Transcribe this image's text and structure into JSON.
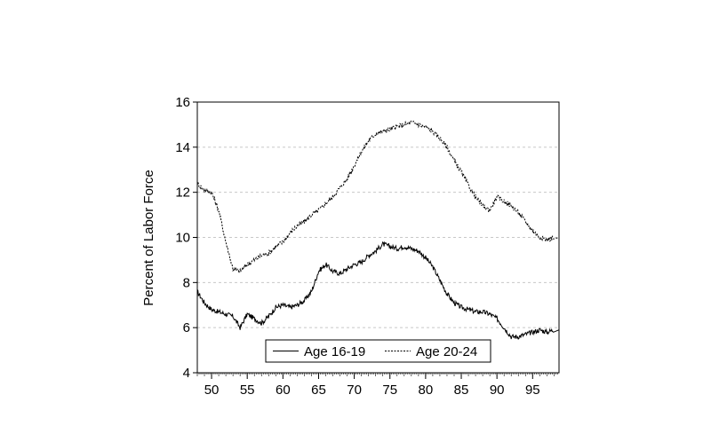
{
  "chart_data": {
    "type": "line",
    "title": "",
    "xlabel": "",
    "ylabel": "Percent of Labor Force",
    "xlim": [
      1948,
      1998.7
    ],
    "ylim": [
      4,
      16
    ],
    "x_ticks": [
      1950,
      1955,
      1960,
      1965,
      1970,
      1975,
      1980,
      1985,
      1990,
      1995
    ],
    "x_tick_labels": [
      "50",
      "55",
      "60",
      "65",
      "70",
      "75",
      "80",
      "85",
      "90",
      "95"
    ],
    "y_ticks": [
      4,
      6,
      8,
      10,
      12,
      14,
      16
    ],
    "y_tick_labels": [
      "4",
      "6",
      "8",
      "10",
      "12",
      "14",
      "16"
    ],
    "grid": "horizontal dashed",
    "legend_position": "bottom-center",
    "series": [
      {
        "name": "Age 16-19",
        "line_style": "solid",
        "color": "#000000",
        "x": [
          1948,
          1949,
          1950,
          1951,
          1952,
          1953,
          1954,
          1955,
          1956,
          1957,
          1958,
          1959,
          1960,
          1961,
          1962,
          1963,
          1964,
          1965,
          1966,
          1967,
          1968,
          1969,
          1970,
          1971,
          1972,
          1973,
          1974,
          1975,
          1976,
          1977,
          1978,
          1979,
          1980,
          1981,
          1982,
          1983,
          1984,
          1985,
          1986,
          1987,
          1988,
          1989,
          1990,
          1991,
          1992,
          1993,
          1994,
          1995,
          1996,
          1997,
          1998
        ],
        "values": [
          7.6,
          7.1,
          6.8,
          6.7,
          6.6,
          6.5,
          6.0,
          6.6,
          6.4,
          6.2,
          6.5,
          6.9,
          7.0,
          6.9,
          7.0,
          7.2,
          7.6,
          8.5,
          8.8,
          8.5,
          8.4,
          8.6,
          8.8,
          8.9,
          9.2,
          9.4,
          9.7,
          9.6,
          9.5,
          9.6,
          9.5,
          9.4,
          9.1,
          8.7,
          8.1,
          7.5,
          7.1,
          6.9,
          6.8,
          6.7,
          6.7,
          6.6,
          6.4,
          6.0,
          5.6,
          5.6,
          5.7,
          5.8,
          5.9,
          5.8,
          5.9
        ]
      },
      {
        "name": "Age 20-24",
        "line_style": "dashed",
        "color": "#000000",
        "x": [
          1948,
          1949,
          1950,
          1951,
          1952,
          1953,
          1954,
          1955,
          1956,
          1957,
          1958,
          1959,
          1960,
          1961,
          1962,
          1963,
          1964,
          1965,
          1966,
          1967,
          1968,
          1969,
          1970,
          1971,
          1972,
          1973,
          1974,
          1975,
          1976,
          1977,
          1978,
          1979,
          1980,
          1981,
          1982,
          1983,
          1984,
          1985,
          1986,
          1987,
          1988,
          1989,
          1990,
          1991,
          1992,
          1993,
          1994,
          1995,
          1996,
          1997,
          1998
        ],
        "values": [
          12.4,
          12.1,
          12.0,
          11.2,
          9.8,
          8.6,
          8.5,
          8.8,
          9.0,
          9.2,
          9.3,
          9.6,
          9.8,
          10.2,
          10.5,
          10.7,
          11.0,
          11.2,
          11.5,
          11.8,
          12.2,
          12.6,
          13.2,
          13.8,
          14.3,
          14.6,
          14.7,
          14.8,
          14.9,
          15.0,
          15.1,
          15.0,
          14.9,
          14.7,
          14.4,
          14.0,
          13.4,
          12.9,
          12.3,
          11.8,
          11.4,
          11.2,
          11.8,
          11.6,
          11.4,
          11.1,
          10.7,
          10.3,
          10.0,
          9.9,
          10.0
        ]
      }
    ]
  }
}
